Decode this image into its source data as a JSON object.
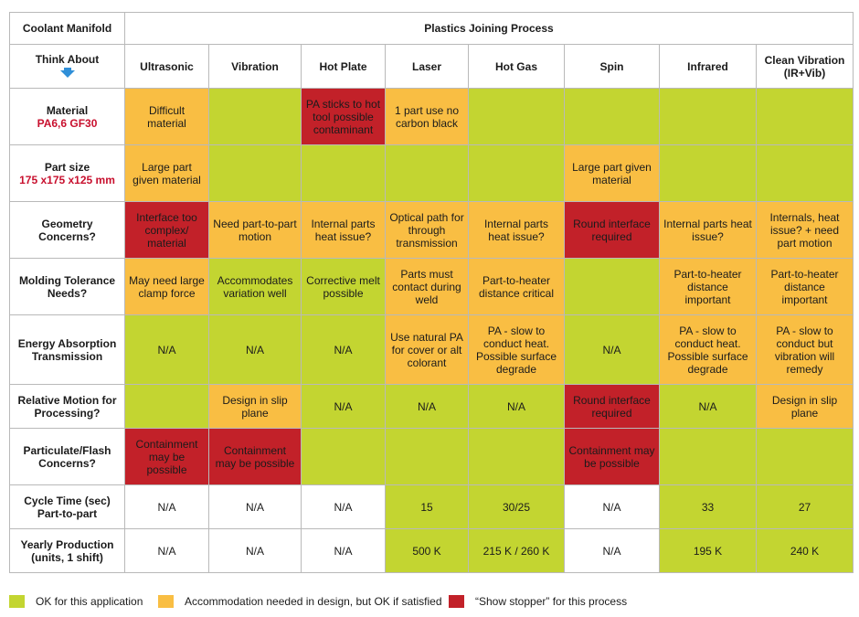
{
  "colors": {
    "ok": "#c3d531",
    "accommodation": "#f9be43",
    "show_stopper": "#c22129",
    "heading_blue": "#1f3c80",
    "arrow_blue": "#2f8fd8",
    "subtitle_red": "#c8102e"
  },
  "header": {
    "top_left": "Coolant Manifold",
    "title": "Plastics Joining Process",
    "think_about": "Think About",
    "think_about_icon": "down-arrow-icon"
  },
  "columns": [
    "Ultrasonic",
    "Vibration",
    "Hot Plate",
    "Laser",
    "Hot Gas",
    "Spin",
    "Infrared",
    "Clean Vibration (IR+Vib)"
  ],
  "rows": [
    {
      "label": "Material",
      "sublabel": "PA6,6 GF30",
      "cells": [
        {
          "text": "Difficult material",
          "status": "accommodation"
        },
        {
          "text": "",
          "status": "ok"
        },
        {
          "text": "PA sticks to hot tool possible contaminant",
          "status": "show_stopper"
        },
        {
          "text": "1 part use no carbon black",
          "status": "accommodation"
        },
        {
          "text": "",
          "status": "ok"
        },
        {
          "text": "",
          "status": "ok"
        },
        {
          "text": "",
          "status": "ok"
        },
        {
          "text": "",
          "status": "ok"
        }
      ]
    },
    {
      "label": "Part size",
      "sublabel": "175 x175 x125 mm",
      "cells": [
        {
          "text": "Large part given material",
          "status": "accommodation"
        },
        {
          "text": "",
          "status": "ok"
        },
        {
          "text": "",
          "status": "ok"
        },
        {
          "text": "",
          "status": "ok"
        },
        {
          "text": "",
          "status": "ok"
        },
        {
          "text": "Large part given material",
          "status": "accommodation"
        },
        {
          "text": "",
          "status": "ok"
        },
        {
          "text": "",
          "status": "ok"
        }
      ]
    },
    {
      "label": "Geometry Concerns?",
      "sublabel": "",
      "cells": [
        {
          "text": "Interface too complex/ material",
          "status": "show_stopper"
        },
        {
          "text": "Need part-to-part motion",
          "status": "accommodation"
        },
        {
          "text": "Internal parts heat issue?",
          "status": "accommodation"
        },
        {
          "text": "Optical path for through transmission",
          "status": "accommodation"
        },
        {
          "text": "Internal parts heat issue?",
          "status": "accommodation"
        },
        {
          "text": "Round interface required",
          "status": "show_stopper"
        },
        {
          "text": "Internal parts heat issue?",
          "status": "accommodation"
        },
        {
          "text": "Internals, heat issue? + need part motion",
          "status": "accommodation"
        }
      ]
    },
    {
      "label": "Molding Tolerance Needs?",
      "sublabel": "",
      "cells": [
        {
          "text": "May need large clamp force",
          "status": "accommodation"
        },
        {
          "text": "Accommodates variation well",
          "status": "ok"
        },
        {
          "text": "Corrective melt possible",
          "status": "ok"
        },
        {
          "text": "Parts must contact during weld",
          "status": "accommodation"
        },
        {
          "text": "Part-to-heater distance critical",
          "status": "accommodation"
        },
        {
          "text": "",
          "status": "ok"
        },
        {
          "text": "Part-to-heater distance important",
          "status": "accommodation"
        },
        {
          "text": "Part-to-heater distance important",
          "status": "accommodation"
        }
      ]
    },
    {
      "label": "Energy Absorption Transmission",
      "sublabel": "",
      "cells": [
        {
          "text": "N/A",
          "status": "ok"
        },
        {
          "text": "N/A",
          "status": "ok"
        },
        {
          "text": "N/A",
          "status": "ok"
        },
        {
          "text": "Use natural PA for cover or alt colorant",
          "status": "accommodation"
        },
        {
          "text": "PA - slow to conduct heat. Possible surface degrade",
          "status": "accommodation"
        },
        {
          "text": "N/A",
          "status": "ok"
        },
        {
          "text": "PA - slow to conduct heat. Possible surface degrade",
          "status": "accommodation"
        },
        {
          "text": "PA - slow to conduct but vibration will remedy",
          "status": "accommodation"
        }
      ]
    },
    {
      "label": "Relative Motion for Processing?",
      "sublabel": "",
      "cells": [
        {
          "text": "",
          "status": "ok"
        },
        {
          "text": "Design in slip plane",
          "status": "accommodation"
        },
        {
          "text": "N/A",
          "status": "ok"
        },
        {
          "text": "N/A",
          "status": "ok"
        },
        {
          "text": "N/A",
          "status": "ok"
        },
        {
          "text": "Round interface required",
          "status": "show_stopper"
        },
        {
          "text": "N/A",
          "status": "ok"
        },
        {
          "text": "Design in slip plane",
          "status": "accommodation"
        }
      ]
    },
    {
      "label": "Particulate/Flash Concerns?",
      "sublabel": "",
      "cells": [
        {
          "text": "Containment may be possible",
          "status": "show_stopper"
        },
        {
          "text": "Containment may be possible",
          "status": "show_stopper"
        },
        {
          "text": "",
          "status": "ok"
        },
        {
          "text": "",
          "status": "ok"
        },
        {
          "text": "",
          "status": "ok"
        },
        {
          "text": "Containment may be possible",
          "status": "show_stopper"
        },
        {
          "text": "",
          "status": "ok"
        },
        {
          "text": "",
          "status": "ok"
        }
      ]
    },
    {
      "label": "Cycle Time (sec) Part-to-part",
      "sublabel": "",
      "cells": [
        {
          "text": "N/A",
          "status": "none"
        },
        {
          "text": "N/A",
          "status": "none"
        },
        {
          "text": "N/A",
          "status": "none"
        },
        {
          "text": "15",
          "status": "ok"
        },
        {
          "text": "30/25",
          "status": "ok"
        },
        {
          "text": "N/A",
          "status": "none"
        },
        {
          "text": "33",
          "status": "ok"
        },
        {
          "text": "27",
          "status": "ok"
        }
      ]
    },
    {
      "label": "Yearly Production (units, 1 shift)",
      "sublabel": "",
      "cells": [
        {
          "text": "N/A",
          "status": "none"
        },
        {
          "text": "N/A",
          "status": "none"
        },
        {
          "text": "N/A",
          "status": "none"
        },
        {
          "text": "500 K",
          "status": "ok"
        },
        {
          "text": "215 K / 260 K",
          "status": "ok"
        },
        {
          "text": "N/A",
          "status": "none"
        },
        {
          "text": "195 K",
          "status": "ok"
        },
        {
          "text": "240 K",
          "status": "ok"
        }
      ]
    }
  ],
  "legend": [
    {
      "status": "ok",
      "text": "OK for this application"
    },
    {
      "status": "accommodation",
      "text": "Accommodation needed in design, but OK if satisfied"
    },
    {
      "status": "show_stopper",
      "text": "“Show stopper” for this process"
    }
  ]
}
